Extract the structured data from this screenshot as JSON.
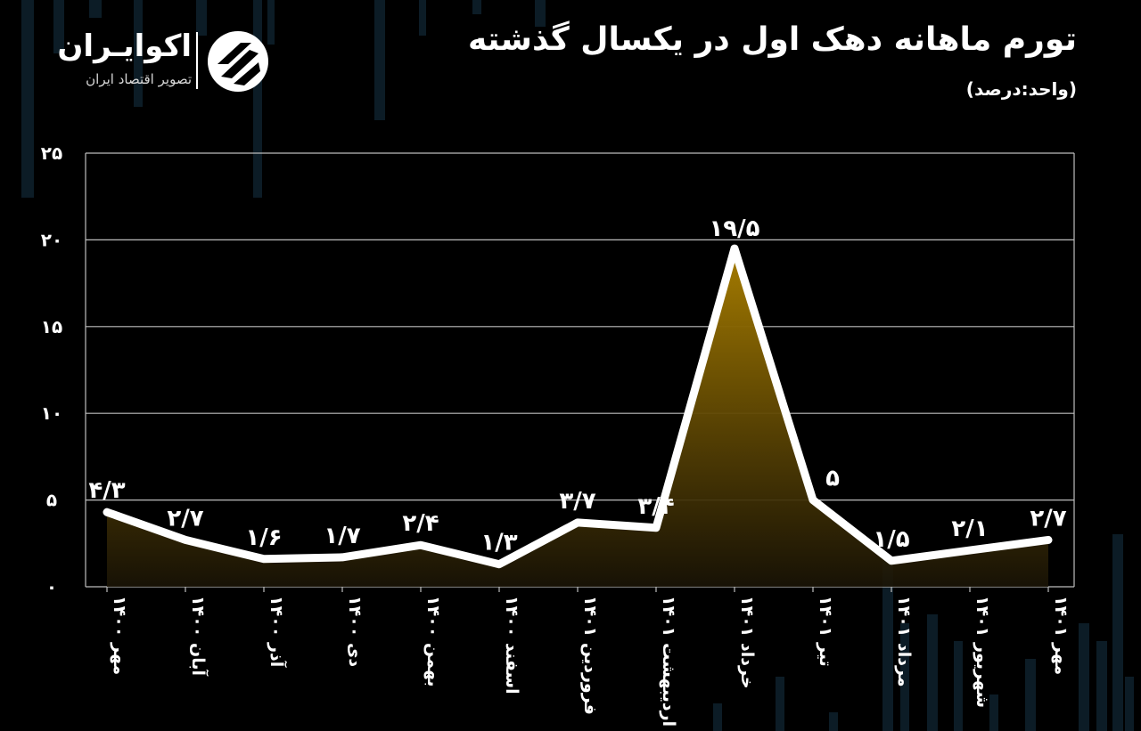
{
  "header": {
    "title": "تورم ماهانه دهک اول در یکسال گذشته",
    "unit_label": "(واحد:درصد)"
  },
  "logo": {
    "name": "اکوایـران",
    "tagline": "تصویر اقتصاد ایران",
    "icon": "ecoiran-logo-mark"
  },
  "colors": {
    "background": "#000000",
    "line": "#ffffff",
    "grid": "#bdbdbd",
    "area_top": "#a67c00",
    "area_bottom": "#1a1406",
    "background_bars": "#0c1c26"
  },
  "chart_data": {
    "type": "line",
    "categories": [
      "مهر ۱۴۰۰",
      "آبان ۱۴۰۰",
      "آذر ۱۴۰۰",
      "دی ۱۴۰۰",
      "بهمن ۱۴۰۰",
      "اسفند ۱۴۰۰",
      "فروردین ۱۴۰۱",
      "اردیبهشت ۱۴۰۱",
      "خرداد ۱۴۰۱",
      "تیر ۱۴۰۱",
      "مرداد ۱۴۰۱",
      "شهریور ۱۴۰۱",
      "مهر ۱۴۰۱"
    ],
    "values": [
      4.3,
      2.7,
      1.6,
      1.7,
      2.4,
      1.3,
      3.7,
      3.4,
      19.5,
      5,
      1.5,
      2.1,
      2.7
    ],
    "data_labels": [
      "۴/۳",
      "۲/۷",
      "۱/۶",
      "۱/۷",
      "۲/۴",
      "۱/۳",
      "۳/۷",
      "۳/۴",
      "۱۹/۵",
      "۵",
      "۱/۵",
      "۲/۱",
      "۲/۷"
    ],
    "y_ticks": [
      0,
      5,
      10,
      15,
      20,
      25
    ],
    "y_tick_labels": [
      "۰",
      "۵",
      "۱۰",
      "۱۵",
      "۲۰",
      "۲۵"
    ],
    "ylim": [
      0,
      25
    ],
    "grid": true,
    "area_fill": true,
    "legend": "none"
  }
}
